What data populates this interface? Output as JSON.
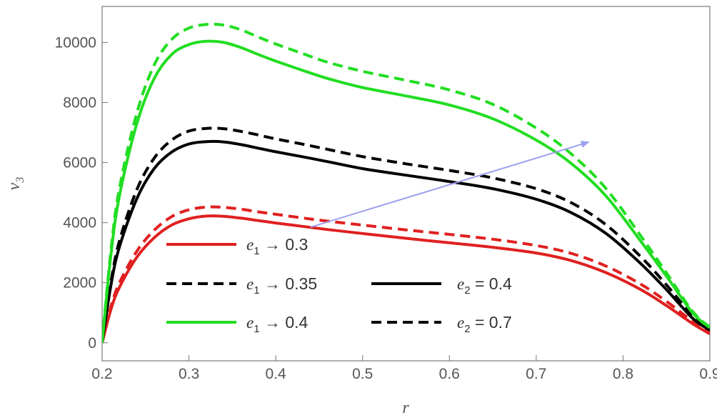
{
  "chart_data": {
    "type": "line",
    "title": "",
    "xlabel": "r",
    "ylabel_main": "v",
    "ylabel_sub": "3",
    "xlim": [
      0.2,
      0.9
    ],
    "ylim": [
      -600,
      11200
    ],
    "xticks": [
      0.2,
      0.3,
      0.4,
      0.5,
      0.6,
      0.7,
      0.8,
      0.9
    ],
    "xtick_labels": [
      "0.2",
      "0.3",
      "0.4",
      "0.5",
      "0.6",
      "0.7",
      "0.8",
      "0.9"
    ],
    "yticks": [
      0,
      2000,
      4000,
      6000,
      8000,
      10000
    ],
    "ytick_labels": [
      "0",
      "2000",
      "4000",
      "6000",
      "8000",
      "10000"
    ],
    "grid": false,
    "legend_placement": "bottom-left",
    "x": [
      0.2,
      0.21,
      0.22,
      0.24,
      0.26,
      0.28,
      0.3,
      0.32,
      0.34,
      0.36,
      0.38,
      0.4,
      0.43,
      0.46,
      0.5,
      0.55,
      0.6,
      0.65,
      0.7,
      0.74,
      0.78,
      0.82,
      0.85,
      0.88,
      0.9
    ],
    "series": [
      {
        "color": "#e02020",
        "dash": "solid",
        "values": [
          0,
          1100,
          1850,
          2850,
          3500,
          3920,
          4130,
          4220,
          4210,
          4150,
          4070,
          3990,
          3880,
          3770,
          3640,
          3480,
          3330,
          3180,
          2990,
          2740,
          2340,
          1780,
          1240,
          640,
          300
        ]
      },
      {
        "color": "#e02020",
        "dash": "dashed",
        "values": [
          0,
          1200,
          2000,
          3050,
          3750,
          4200,
          4430,
          4520,
          4510,
          4450,
          4360,
          4280,
          4160,
          4050,
          3920,
          3760,
          3610,
          3450,
          3240,
          2980,
          2560,
          1960,
          1380,
          720,
          340
        ]
      },
      {
        "color": "#000000",
        "dash": "solid",
        "values": [
          0,
          1900,
          3200,
          4800,
          5800,
          6350,
          6620,
          6700,
          6690,
          6600,
          6480,
          6360,
          6200,
          6030,
          5800,
          5580,
          5370,
          5130,
          4780,
          4340,
          3650,
          2650,
          1770,
          820,
          420
        ]
      },
      {
        "color": "#000000",
        "dash": "dashed",
        "values": [
          0,
          2000,
          3400,
          5100,
          6150,
          6750,
          7050,
          7140,
          7130,
          7040,
          6920,
          6790,
          6620,
          6440,
          6200,
          5960,
          5740,
          5490,
          5130,
          4670,
          3940,
          2880,
          1930,
          900,
          460
        ]
      },
      {
        "color": "#22dd22",
        "dash": "solid",
        "values": [
          0,
          2900,
          4900,
          7300,
          8800,
          9600,
          9930,
          10040,
          10000,
          9830,
          9600,
          9380,
          9080,
          8800,
          8500,
          8220,
          7920,
          7460,
          6750,
          5980,
          4900,
          3400,
          2220,
          1000,
          500
        ]
      },
      {
        "color": "#22dd22",
        "dash": "dashed",
        "values": [
          0,
          3050,
          5150,
          7650,
          9250,
          10100,
          10480,
          10600,
          10580,
          10420,
          10180,
          9950,
          9640,
          9340,
          9040,
          8740,
          8420,
          7940,
          7150,
          6300,
          5150,
          3580,
          2330,
          1050,
          520
        ]
      }
    ],
    "legend": [
      {
        "color": "#e02020",
        "dash": "solid",
        "var": "e",
        "sub": "1",
        "rel": " → 0.3"
      },
      {
        "color": "#000000",
        "dash": "dashed",
        "var": "e",
        "sub": "1",
        "rel": " → 0.35"
      },
      {
        "color": "#22dd22",
        "dash": "solid",
        "var": "e",
        "sub": "1",
        "rel": " → 0.4"
      },
      {
        "color": "#000000",
        "dash": "solid",
        "var": "e",
        "sub": "2",
        "rel": " = 0.4"
      },
      {
        "color": "#000000",
        "dash": "dashed",
        "var": "e",
        "sub": "2",
        "rel": " = 0.7"
      }
    ],
    "annotations": [
      {
        "type": "arrow",
        "color": "#9f9ff0",
        "from": [
          0.44,
          3850
        ],
        "to": [
          0.76,
          6680
        ]
      }
    ]
  }
}
